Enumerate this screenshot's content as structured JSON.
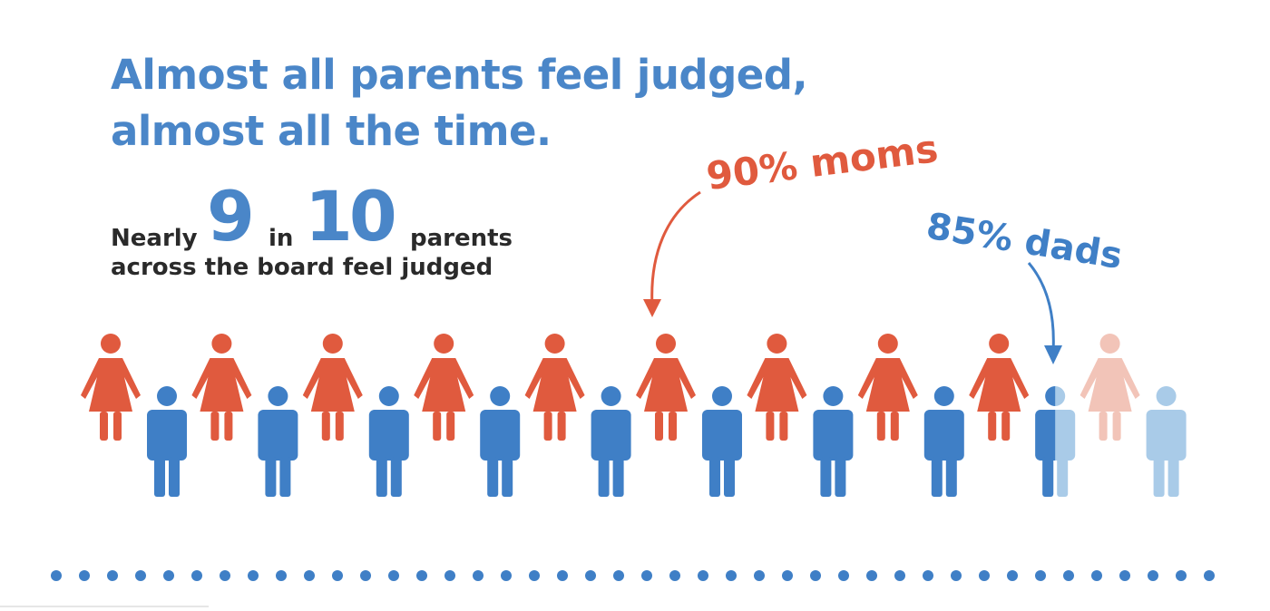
{
  "headline": {
    "line1": "Almost all parents feel judged,",
    "line2": "almost all the time."
  },
  "stat": {
    "nearly": "Nearly",
    "num1": "9",
    "in": "in",
    "num2": "10",
    "parents": "parents",
    "line2": "across the board feel judged"
  },
  "callouts": {
    "moms": "90% moms",
    "dads": "85% dads"
  },
  "people": {
    "moms_total": 10,
    "moms_highlighted": 9,
    "dads_total": 10,
    "dads_highlighted": 8.5
  },
  "colors": {
    "mom": "#e05a3e",
    "mom_faded": "#f2c4b8",
    "dad": "#3f7fc6",
    "dad_faded": "#a9cbe8",
    "headline": "#4a86c8",
    "dots": "#3f7fc6"
  },
  "icons": {
    "mom": "woman-icon",
    "dad": "man-icon"
  }
}
